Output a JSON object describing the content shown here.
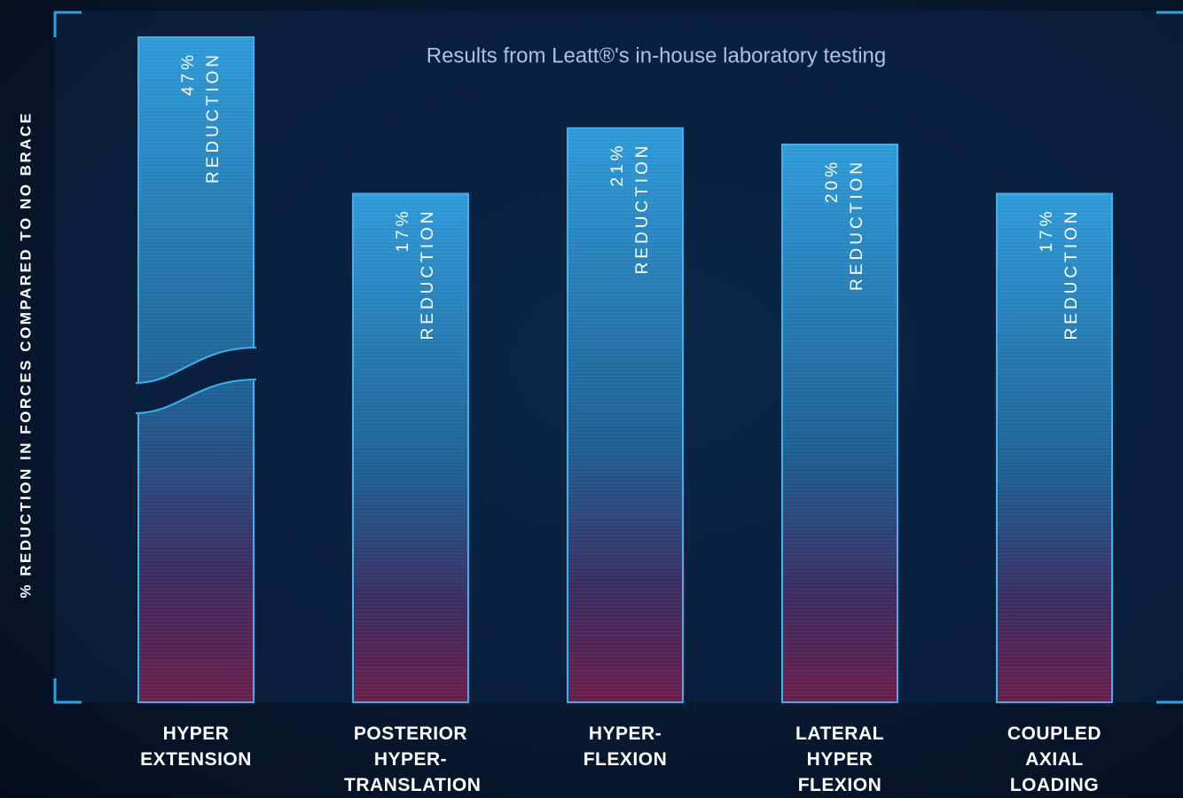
{
  "chart_data": {
    "type": "bar",
    "subtitle": "Results from Leatt®'s in-house laboratory testing",
    "y_label": "% REDUCTION IN FORCES COMPARED TO NO BRACE",
    "categories": [
      "HYPER EXTENSION",
      "POSTERIOR HYPER-TRANSLATION",
      "HYPER-FLEXION",
      "LATERAL HYPER FLEXION",
      "COUPLED AXIAL LOADING"
    ],
    "values": [
      47,
      17,
      21,
      20,
      17
    ],
    "value_labels": [
      "47%",
      "17%",
      "21%",
      "20%",
      "17%"
    ],
    "value_label_caption": "REDUCTION",
    "color": "#2a8fd0",
    "ylim": [
      -14,
      26
    ]
  }
}
